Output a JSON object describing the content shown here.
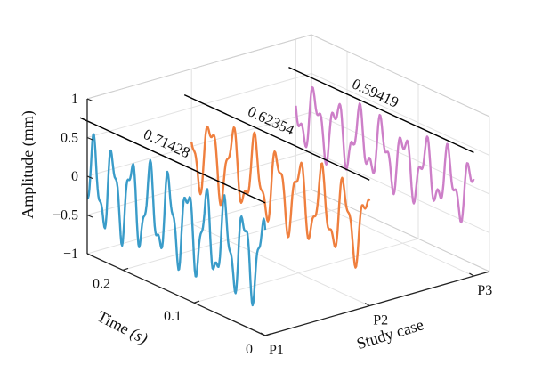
{
  "chart_data": {
    "type": "line",
    "z_label": "Amplitude (mm)",
    "time_label_main": "Time ",
    "time_label_unit": "(s)",
    "case_label": "Study case",
    "z_ticks": [
      "1",
      "0.5",
      "0",
      "−0.5",
      "−1"
    ],
    "z_tick_values": [
      1,
      0.5,
      0,
      -0.5,
      -1
    ],
    "time_ticks": [
      "0.2",
      "0.1",
      "0"
    ],
    "time_tick_values": [
      0.2,
      0.1,
      0
    ],
    "case_ticks": [
      "P1",
      "P2",
      "P3"
    ],
    "zlim": [
      -1,
      1
    ],
    "time_range": [
      0,
      0.25
    ],
    "grid": true,
    "series": [
      {
        "case": "P1",
        "color": "#3a9cc9",
        "peak_label": "0.71428",
        "peak": 0.71428,
        "mean": -0.05,
        "amp1": 0.47,
        "amp2": 0.17,
        "cycles": 9.5
      },
      {
        "case": "P2",
        "color": "#ef7f3e",
        "peak_label": "0.62354",
        "peak": 0.62354,
        "mean": -0.02,
        "amp1": 0.42,
        "amp2": 0.16,
        "cycles": 8.0
      },
      {
        "case": "P3",
        "color": "#cd7fc8",
        "peak_label": "0.59419",
        "peak": 0.59419,
        "mean": 0.06,
        "amp1": 0.33,
        "amp2": 0.17,
        "cycles": 8.0
      }
    ]
  }
}
